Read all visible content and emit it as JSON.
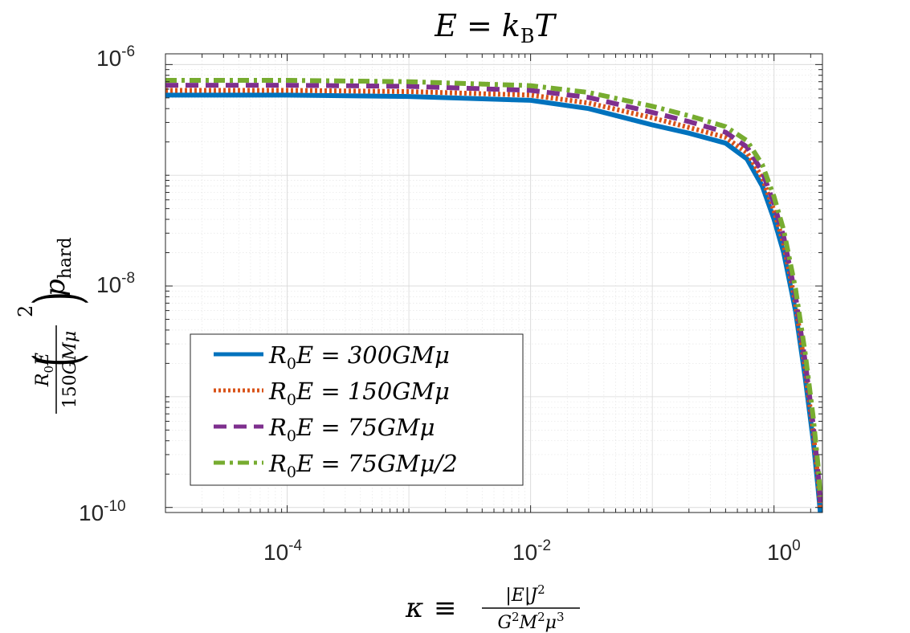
{
  "chart_data": {
    "type": "line",
    "title": "E = k_B T",
    "xlabel": "κ ≡ |E| J² / (G² M² μ³)",
    "ylabel": "(R0 E / 150 G M μ)² p_hard",
    "xscale": "log",
    "yscale": "log",
    "xlim": [
      1e-05,
      2.5
    ],
    "ylim": [
      9e-11,
      1.25e-06
    ],
    "grid": true,
    "x_ticks": [
      {
        "base": "10",
        "exp": "-4",
        "value": 0.0001
      },
      {
        "base": "10",
        "exp": "-2",
        "value": 0.01
      },
      {
        "base": "10",
        "exp": "0",
        "value": 1
      }
    ],
    "y_ticks": [
      {
        "base": "10",
        "exp": "-10",
        "value": 1e-10
      },
      {
        "base": "10",
        "exp": "-8",
        "value": 1e-08
      },
      {
        "base": "10",
        "exp": "-6",
        "value": 1e-06
      }
    ],
    "title_parts": {
      "lhs": "E",
      "eq": "=",
      "k": "k",
      "sub": "B",
      "T": "T"
    },
    "ylabel_parts": {
      "num": "R",
      "num_sub": "0",
      "num_E": "E",
      "den": "150",
      "den_var": "GMμ",
      "power": "2",
      "p": "p",
      "p_sub": "hard"
    },
    "xlabel_parts": {
      "kappa": "κ",
      "equiv": "≡",
      "num": "|E|J",
      "num_sup": "2",
      "den": "G",
      "den_sup1": "2",
      "den_M": "M",
      "den_sup2": "2",
      "den_mu": "μ",
      "den_sup3": "3"
    },
    "legend_position": "bottom-left",
    "series": [
      {
        "name": "R0E = 300GMμ",
        "legend": {
          "r": "R",
          "sub": "0",
          "rest": "E = 300GMμ"
        },
        "color": "#0072BD",
        "style": "solid",
        "x": [
          1e-05,
          0.0001,
          0.001,
          0.01,
          0.03,
          0.1,
          0.2,
          0.4,
          0.6,
          0.8,
          1.0,
          1.2,
          1.5,
          1.8,
          2.1,
          2.3,
          2.4
        ],
        "y": [
          5.3e-07,
          5.3e-07,
          5.15e-07,
          4.75e-07,
          4e-07,
          2.85e-07,
          2.4e-07,
          1.95e-07,
          1.4e-07,
          8e-08,
          4e-08,
          2e-08,
          6e-09,
          1.5e-09,
          4e-10,
          1.5e-10,
          9e-11
        ]
      },
      {
        "name": "R0E = 150GMμ",
        "legend": {
          "r": "R",
          "sub": "0",
          "rest": "E = 150GMμ"
        },
        "color": "#D95319",
        "style": "dotted",
        "x": [
          1e-05,
          0.0001,
          0.001,
          0.01,
          0.03,
          0.1,
          0.2,
          0.4,
          0.6,
          0.8,
          1.0,
          1.2,
          1.5,
          1.8,
          2.1,
          2.3,
          2.4
        ],
        "y": [
          5.85e-07,
          5.85e-07,
          5.7e-07,
          5.3e-07,
          4.5e-07,
          3.3e-07,
          2.7e-07,
          2.2e-07,
          1.6e-07,
          9.5e-08,
          4.8e-08,
          2.4e-08,
          7e-09,
          1.8e-09,
          4.8e-10,
          1.8e-10,
          1e-10
        ]
      },
      {
        "name": "R0E = 75GMμ",
        "legend": {
          "r": "R",
          "sub": "0",
          "rest": "E = 75GMμ"
        },
        "color": "#7E2F8E",
        "style": "dashed",
        "x": [
          1e-05,
          0.0001,
          0.001,
          0.01,
          0.03,
          0.1,
          0.2,
          0.4,
          0.6,
          0.8,
          1.0,
          1.2,
          1.5,
          1.8,
          2.1,
          2.3,
          2.4
        ],
        "y": [
          6.5e-07,
          6.5e-07,
          6.35e-07,
          5.85e-07,
          5.05e-07,
          3.7e-07,
          3.05e-07,
          2.45e-07,
          1.8e-07,
          1.08e-07,
          5.5e-08,
          2.8e-08,
          8.2e-09,
          2.1e-09,
          5.6e-10,
          2.1e-10,
          1.1e-10
        ]
      },
      {
        "name": "R0E = 75GMμ/2",
        "legend": {
          "r": "R",
          "sub": "0",
          "rest": "E = 75GMμ/2"
        },
        "color": "#77AC30",
        "style": "dashdot",
        "x": [
          1e-05,
          0.0001,
          0.001,
          0.01,
          0.03,
          0.1,
          0.2,
          0.4,
          0.6,
          0.8,
          1.0,
          1.2,
          1.5,
          1.8,
          2.1,
          2.3,
          2.4
        ],
        "y": [
          7.2e-07,
          7.2e-07,
          7e-07,
          6.45e-07,
          5.6e-07,
          4.2e-07,
          3.45e-07,
          2.75e-07,
          2.05e-07,
          1.25e-07,
          6.4e-08,
          3.2e-08,
          9.5e-09,
          2.5e-09,
          6.5e-10,
          2.4e-10,
          1.25e-10
        ]
      }
    ]
  }
}
